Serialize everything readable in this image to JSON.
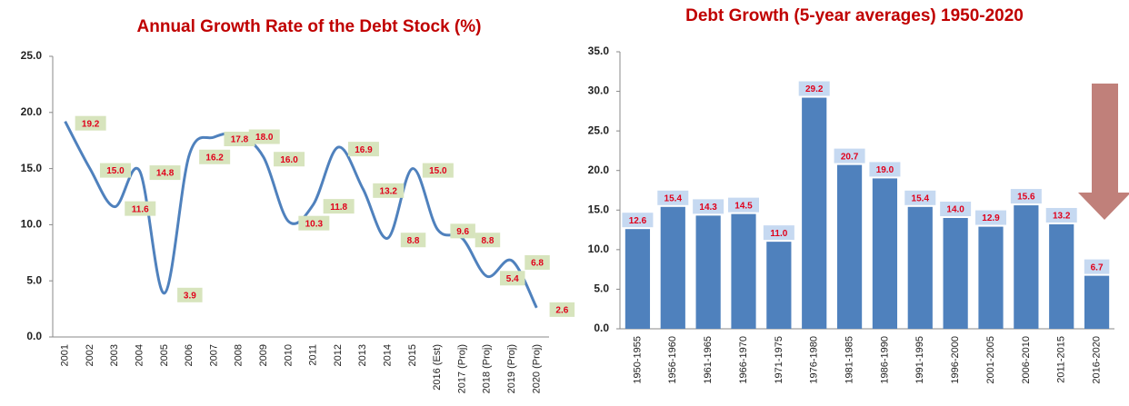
{
  "chart_data": [
    {
      "type": "line",
      "title": "Annual Growth Rate of the Debt Stock (%)",
      "categories": [
        "2001",
        "2002",
        "2003",
        "2004",
        "2005",
        "2006",
        "2007",
        "2008",
        "2009",
        "2010",
        "2011",
        "2012",
        "2013",
        "2014",
        "2015",
        "2016 (Est)",
        "2017 (Proj)",
        "2018 (Proj)",
        "2019 (Proj)",
        "2020 (Proj)"
      ],
      "values": [
        19.2,
        15.0,
        11.6,
        14.8,
        3.9,
        16.2,
        17.8,
        18.0,
        16.0,
        10.3,
        11.8,
        16.9,
        13.2,
        8.8,
        15.0,
        9.6,
        8.8,
        5.4,
        6.8,
        2.6
      ],
      "value_labels": [
        "19.2",
        "15.0",
        "11.6",
        "14.8",
        "3.9",
        "16.2",
        "17.8",
        "18.0",
        "16.0",
        "10.3",
        "11.8",
        "16.9",
        "13.2",
        "8.8",
        "15.0",
        "9.6",
        "8.8",
        "5.4",
        "6.8",
        "2.6"
      ],
      "color": "#4f81bd",
      "label_color": "#d7e4bd",
      "ylim": [
        0,
        25
      ],
      "yticks": [
        {
          "value": 0,
          "label": "0.0"
        },
        {
          "value": 5,
          "label": "5.0"
        },
        {
          "value": 10,
          "label": "10.0"
        },
        {
          "value": 15,
          "label": "15.0"
        },
        {
          "value": 20,
          "label": "20.0"
        },
        {
          "value": 25,
          "label": "25.0"
        }
      ],
      "grid": false
    },
    {
      "type": "bar",
      "title": "Debt Growth (5-year averages) 1950-2020",
      "categories": [
        "1950-1955",
        "1956-1960",
        "1961-1965",
        "1966-1970",
        "1971-1975",
        "1976-1980",
        "1981-1985",
        "1986-1990",
        "1991-1995",
        "1996-2000",
        "2001-2005",
        "2006-2010",
        "2011-2015",
        "2016-2020"
      ],
      "values": [
        12.6,
        15.4,
        14.3,
        14.5,
        11.0,
        29.2,
        20.7,
        19.0,
        15.4,
        14.0,
        12.9,
        15.6,
        13.2,
        6.7
      ],
      "value_labels": [
        "12.6",
        "15.4",
        "14.3",
        "14.5",
        "11.0",
        "29.2",
        "20.7",
        "19.0",
        "15.4",
        "14.0",
        "12.9",
        "15.6",
        "13.2",
        "6.7"
      ],
      "color": "#4f81bd",
      "label_color": "#c6d9f1",
      "ylim": [
        0,
        35
      ],
      "yticks": [
        {
          "value": 0,
          "label": "0.0"
        },
        {
          "value": 5,
          "label": "5.0"
        },
        {
          "value": 10,
          "label": "10.0"
        },
        {
          "value": 15,
          "label": "15.0"
        },
        {
          "value": 20,
          "label": "20.0"
        },
        {
          "value": 25,
          "label": "25.0"
        },
        {
          "value": 30,
          "label": "30.0"
        },
        {
          "value": 35,
          "label": "35.0"
        }
      ],
      "grid": false
    }
  ]
}
